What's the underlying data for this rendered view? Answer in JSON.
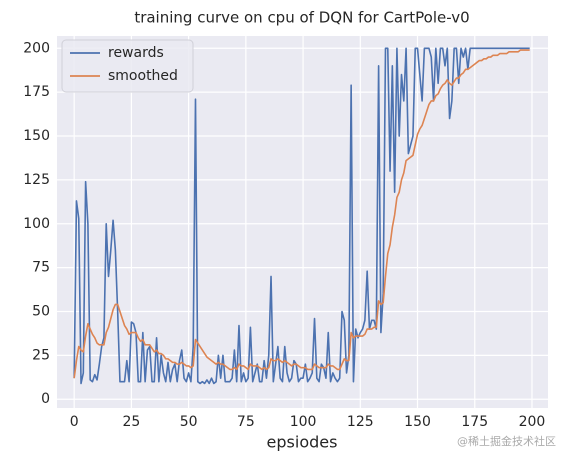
{
  "chart_data": {
    "type": "line",
    "title": "training curve on cpu of DQN for CartPole-v0",
    "xlabel": "epsiodes",
    "watermark": "@稀土掘金技术社区",
    "x": [
      0,
      1,
      2,
      3,
      4,
      5,
      6,
      7,
      8,
      9,
      10,
      11,
      12,
      13,
      14,
      15,
      16,
      17,
      18,
      19,
      20,
      21,
      22,
      23,
      24,
      25,
      26,
      27,
      28,
      29,
      30,
      31,
      32,
      33,
      34,
      35,
      36,
      37,
      38,
      39,
      40,
      41,
      42,
      43,
      44,
      45,
      46,
      47,
      48,
      49,
      50,
      51,
      52,
      53,
      54,
      55,
      56,
      57,
      58,
      59,
      60,
      61,
      62,
      63,
      64,
      65,
      66,
      67,
      68,
      69,
      70,
      71,
      72,
      73,
      74,
      75,
      76,
      77,
      78,
      79,
      80,
      81,
      82,
      83,
      84,
      85,
      86,
      87,
      88,
      89,
      90,
      91,
      92,
      93,
      94,
      95,
      96,
      97,
      98,
      99,
      100,
      101,
      102,
      103,
      104,
      105,
      106,
      107,
      108,
      109,
      110,
      111,
      112,
      113,
      114,
      115,
      116,
      117,
      118,
      119,
      120,
      121,
      122,
      123,
      124,
      125,
      126,
      127,
      128,
      129,
      130,
      131,
      132,
      133,
      134,
      135,
      136,
      137,
      138,
      139,
      140,
      141,
      142,
      143,
      144,
      145,
      146,
      147,
      148,
      149,
      150,
      151,
      152,
      153,
      154,
      155,
      156,
      157,
      158,
      159,
      160,
      161,
      162,
      163,
      164,
      165,
      166,
      167,
      168,
      169,
      170,
      171,
      172,
      173,
      174,
      175,
      176,
      177,
      178,
      179,
      180,
      181,
      182,
      183,
      184,
      185,
      186,
      187,
      188,
      189,
      190,
      191,
      192,
      193,
      194,
      195,
      196,
      197,
      198,
      199
    ],
    "series": [
      {
        "name": "rewards",
        "color": "#4c72b0",
        "values": [
          12,
          113,
          103,
          9,
          15,
          124,
          100,
          11,
          10,
          14,
          11,
          20,
          30,
          35,
          100,
          70,
          85,
          102,
          85,
          50,
          10,
          10,
          10,
          22,
          10,
          44,
          43,
          38,
          10,
          10,
          38,
          10,
          28,
          30,
          10,
          10,
          35,
          10,
          25,
          15,
          10,
          21,
          10,
          17,
          20,
          10,
          22,
          28,
          12,
          10,
          15,
          10,
          30,
          171,
          10,
          9,
          10,
          9,
          11,
          9,
          12,
          9,
          10,
          25,
          12,
          25,
          10,
          10,
          10,
          12,
          28,
          10,
          42,
          10,
          15,
          10,
          12,
          41,
          10,
          15,
          20,
          10,
          10,
          22,
          12,
          25,
          70,
          10,
          20,
          30,
          12,
          10,
          30,
          15,
          10,
          12,
          22,
          20,
          10,
          12,
          12,
          20,
          10,
          12,
          15,
          46,
          12,
          10,
          20,
          18,
          12,
          38,
          10,
          15,
          12,
          10,
          12,
          50,
          45,
          15,
          25,
          179,
          10,
          40,
          35,
          38,
          40,
          45,
          73,
          40,
          45,
          45,
          40,
          190,
          38,
          60,
          200,
          200,
          130,
          190,
          118,
          200,
          150,
          185,
          170,
          200,
          140,
          145,
          150,
          200,
          200,
          185,
          170,
          200,
          200,
          200,
          195,
          170,
          200,
          180,
          200,
          200,
          190,
          200,
          160,
          170,
          200,
          200,
          180,
          200,
          195,
          200,
          188,
          200,
          200,
          200,
          200,
          200,
          200,
          200,
          200,
          200,
          200,
          200,
          200,
          200,
          200,
          200,
          200,
          200,
          200,
          200,
          200,
          200,
          200,
          200,
          200,
          200,
          200,
          200
        ]
      },
      {
        "name": "smoothed",
        "color": "#dd8452",
        "values": [
          12,
          22,
          30,
          28,
          27,
          36,
          43,
          40,
          37,
          35,
          32,
          31,
          31,
          31,
          38,
          41,
          46,
          51,
          54,
          54,
          50,
          46,
          42,
          40,
          37,
          38,
          38,
          38,
          35,
          33,
          34,
          31,
          31,
          31,
          29,
          27,
          28,
          26,
          26,
          25,
          23,
          23,
          22,
          21,
          21,
          20,
          20,
          21,
          20,
          19,
          19,
          18,
          19,
          34,
          32,
          30,
          28,
          26,
          24,
          23,
          22,
          21,
          20,
          21,
          20,
          20,
          19,
          18,
          17,
          17,
          18,
          17,
          20,
          19,
          19,
          18,
          17,
          20,
          19,
          19,
          19,
          18,
          17,
          18,
          17,
          18,
          23,
          22,
          22,
          23,
          22,
          21,
          22,
          21,
          20,
          19,
          20,
          20,
          19,
          18,
          18,
          18,
          17,
          17,
          17,
          20,
          19,
          18,
          18,
          18,
          18,
          20,
          19,
          19,
          18,
          17,
          17,
          20,
          23,
          22,
          22,
          38,
          35,
          36,
          36,
          36,
          36,
          37,
          40,
          40,
          40,
          41,
          41,
          56,
          54,
          55,
          70,
          83,
          88,
          98,
          105,
          115,
          118,
          125,
          129,
          136,
          137,
          138,
          139,
          145,
          151,
          154,
          156,
          160,
          164,
          168,
          170,
          170,
          173,
          174,
          177,
          179,
          180,
          182,
          180,
          179,
          181,
          183,
          183,
          185,
          186,
          188,
          188,
          189,
          190,
          191,
          192,
          193,
          193,
          194,
          194,
          195,
          195,
          196,
          196,
          196,
          197,
          197,
          197,
          197,
          198,
          198,
          198,
          198,
          198,
          199,
          199,
          199,
          199,
          199
        ]
      }
    ],
    "xlim": [
      -7.5,
      207
    ],
    "xticks": [
      0,
      25,
      50,
      75,
      100,
      125,
      150,
      175,
      200
    ],
    "ylim": [
      -5,
      207
    ],
    "yticks": [
      0,
      25,
      50,
      75,
      100,
      125,
      150,
      175,
      200
    ],
    "grid": true,
    "legend": "upper left"
  }
}
